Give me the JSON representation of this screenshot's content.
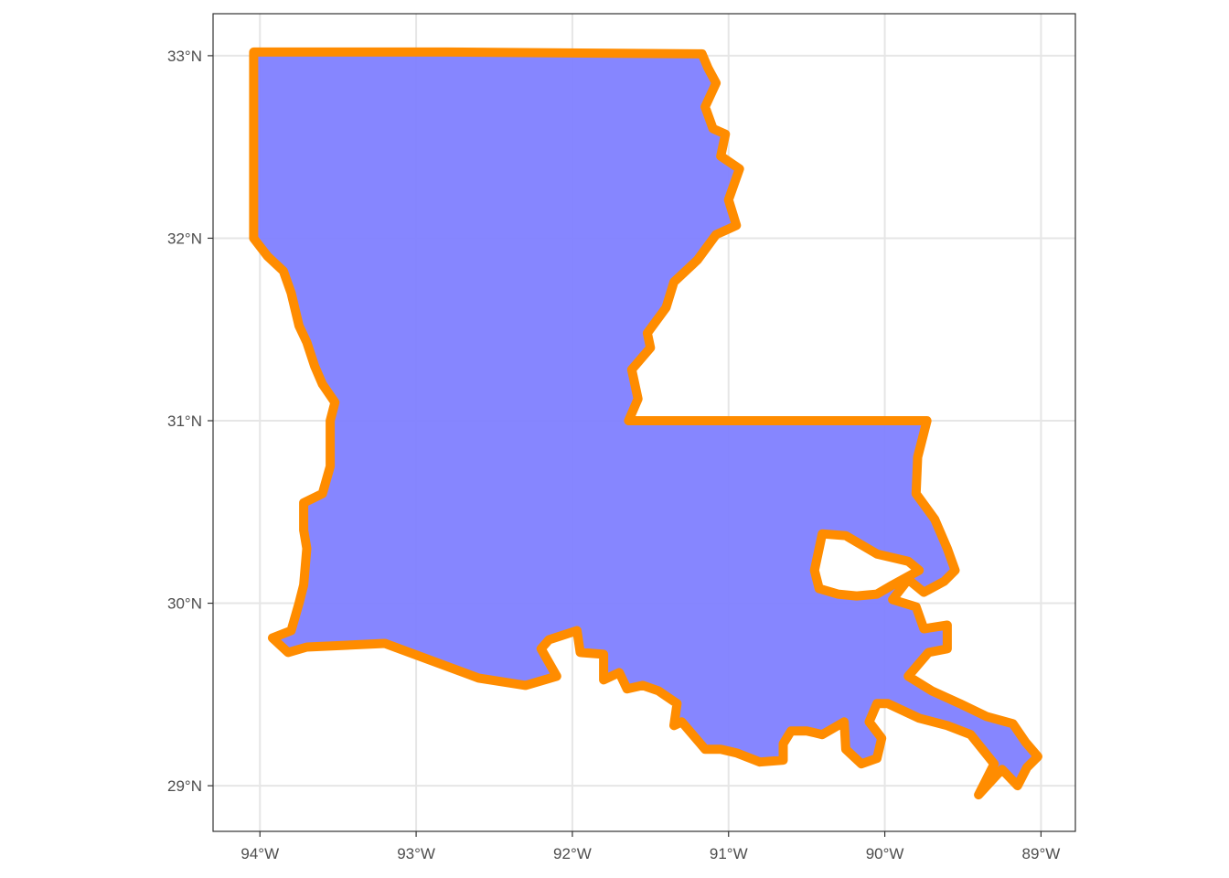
{
  "map": {
    "colors": {
      "fill": "#7f7fff",
      "outline": "#ff8c00",
      "grid": "#e6e6e6",
      "panel_border": "#333333",
      "tick_text": "#4d4d4d"
    },
    "lon_range": [
      -94.3,
      -88.78
    ],
    "lat_range": [
      28.75,
      33.23
    ],
    "x_ticks": [
      {
        "lon": -94,
        "label": "94°W"
      },
      {
        "lon": -93,
        "label": "93°W"
      },
      {
        "lon": -92,
        "label": "92°W"
      },
      {
        "lon": -91,
        "label": "91°W"
      },
      {
        "lon": -90,
        "label": "90°W"
      },
      {
        "lon": -89,
        "label": "89°W"
      }
    ],
    "y_ticks": [
      {
        "lat": 33,
        "label": "33°N"
      },
      {
        "lat": 32,
        "label": "32°N"
      },
      {
        "lat": 31,
        "label": "31°N"
      },
      {
        "lat": 30,
        "label": "30°N"
      },
      {
        "lat": 29,
        "label": "29°N"
      }
    ],
    "state_outline": [
      [
        -94.04,
        33.02
      ],
      [
        -92.8,
        33.02
      ],
      [
        -91.17,
        33.01
      ],
      [
        -91.13,
        32.93
      ],
      [
        -91.08,
        32.85
      ],
      [
        -91.15,
        32.72
      ],
      [
        -91.1,
        32.6
      ],
      [
        -91.02,
        32.57
      ],
      [
        -91.05,
        32.45
      ],
      [
        -90.93,
        32.38
      ],
      [
        -91.0,
        32.21
      ],
      [
        -90.95,
        32.07
      ],
      [
        -91.08,
        32.02
      ],
      [
        -91.2,
        31.88
      ],
      [
        -91.35,
        31.76
      ],
      [
        -91.4,
        31.62
      ],
      [
        -91.52,
        31.48
      ],
      [
        -91.5,
        31.4
      ],
      [
        -91.62,
        31.28
      ],
      [
        -91.58,
        31.12
      ],
      [
        -91.64,
        31.0
      ],
      [
        -90.8,
        31.0
      ],
      [
        -89.73,
        31.0
      ],
      [
        -89.79,
        30.8
      ],
      [
        -89.8,
        30.6
      ],
      [
        -89.68,
        30.46
      ],
      [
        -89.6,
        30.3
      ],
      [
        -89.55,
        30.18
      ],
      [
        -89.62,
        30.12
      ],
      [
        -89.75,
        30.06
      ],
      [
        -89.85,
        30.13
      ],
      [
        -89.95,
        30.02
      ],
      [
        -89.8,
        29.98
      ],
      [
        -89.75,
        29.86
      ],
      [
        -89.6,
        29.88
      ],
      [
        -89.6,
        29.75
      ],
      [
        -89.72,
        29.73
      ],
      [
        -89.85,
        29.6
      ],
      [
        -89.7,
        29.52
      ],
      [
        -89.52,
        29.45
      ],
      [
        -89.35,
        29.38
      ],
      [
        -89.18,
        29.34
      ],
      [
        -89.1,
        29.24
      ],
      [
        -89.02,
        29.16
      ],
      [
        -89.09,
        29.1
      ],
      [
        -89.15,
        29.0
      ],
      [
        -89.25,
        29.09
      ],
      [
        -89.4,
        28.95
      ],
      [
        -89.3,
        29.12
      ],
      [
        -89.45,
        29.28
      ],
      [
        -89.6,
        29.33
      ],
      [
        -89.78,
        29.37
      ],
      [
        -89.98,
        29.45
      ],
      [
        -90.05,
        29.45
      ],
      [
        -90.1,
        29.35
      ],
      [
        -90.02,
        29.26
      ],
      [
        -90.05,
        29.15
      ],
      [
        -90.15,
        29.12
      ],
      [
        -90.25,
        29.2
      ],
      [
        -90.26,
        29.35
      ],
      [
        -90.4,
        29.28
      ],
      [
        -90.5,
        29.3
      ],
      [
        -90.6,
        29.3
      ],
      [
        -90.65,
        29.23
      ],
      [
        -90.65,
        29.14
      ],
      [
        -90.8,
        29.13
      ],
      [
        -90.95,
        29.18
      ],
      [
        -91.05,
        29.2
      ],
      [
        -91.15,
        29.2
      ],
      [
        -91.2,
        29.25
      ],
      [
        -91.3,
        29.35
      ],
      [
        -91.35,
        29.33
      ],
      [
        -91.33,
        29.45
      ],
      [
        -91.45,
        29.52
      ],
      [
        -91.55,
        29.55
      ],
      [
        -91.65,
        29.53
      ],
      [
        -91.7,
        29.62
      ],
      [
        -91.8,
        29.58
      ],
      [
        -91.8,
        29.72
      ],
      [
        -91.95,
        29.73
      ],
      [
        -91.97,
        29.85
      ],
      [
        -92.15,
        29.8
      ],
      [
        -92.2,
        29.75
      ],
      [
        -92.1,
        29.6
      ],
      [
        -92.3,
        29.55
      ],
      [
        -92.6,
        29.59
      ],
      [
        -93.2,
        29.78
      ],
      [
        -93.7,
        29.76
      ],
      [
        -93.82,
        29.73
      ],
      [
        -93.92,
        29.81
      ],
      [
        -93.8,
        29.85
      ],
      [
        -93.75,
        30.0
      ],
      [
        -93.72,
        30.1
      ],
      [
        -93.7,
        30.3
      ],
      [
        -93.72,
        30.4
      ],
      [
        -93.72,
        30.55
      ],
      [
        -93.6,
        30.6
      ],
      [
        -93.55,
        30.75
      ],
      [
        -93.55,
        30.9
      ],
      [
        -93.55,
        31.0
      ],
      [
        -93.52,
        31.1
      ],
      [
        -93.6,
        31.2
      ],
      [
        -93.65,
        31.3
      ],
      [
        -93.7,
        31.43
      ],
      [
        -93.75,
        31.52
      ],
      [
        -93.8,
        31.7
      ],
      [
        -93.85,
        31.82
      ],
      [
        -93.95,
        31.9
      ],
      [
        -94.04,
        32.0
      ],
      [
        -94.04,
        33.02
      ]
    ],
    "lake_outline": [
      [
        -90.4,
        30.38
      ],
      [
        -90.25,
        30.37
      ],
      [
        -90.05,
        30.27
      ],
      [
        -89.85,
        30.23
      ],
      [
        -89.78,
        30.18
      ],
      [
        -89.95,
        30.1
      ],
      [
        -90.05,
        30.05
      ],
      [
        -90.18,
        30.04
      ],
      [
        -90.3,
        30.05
      ],
      [
        -90.42,
        30.08
      ],
      [
        -90.45,
        30.18
      ],
      [
        -90.4,
        30.38
      ]
    ]
  }
}
